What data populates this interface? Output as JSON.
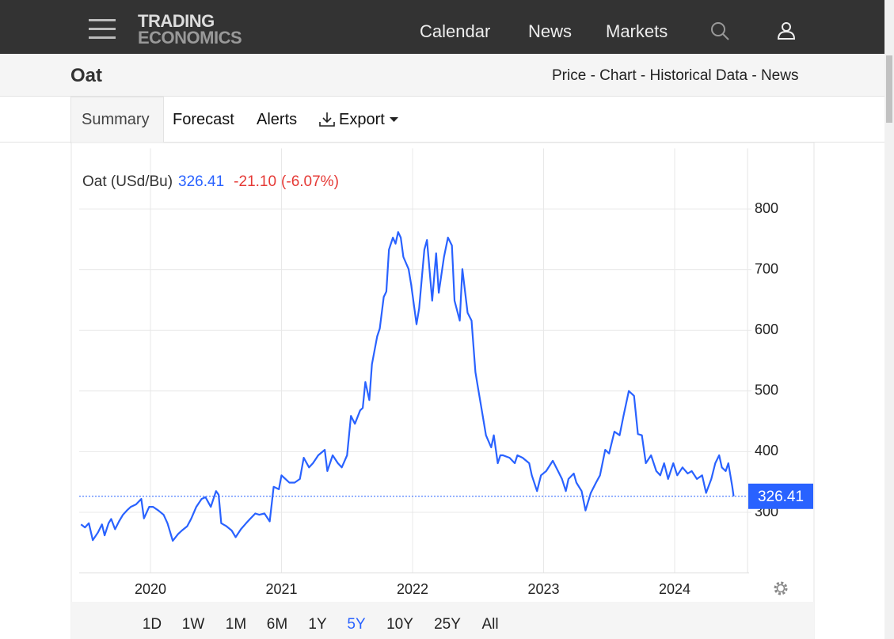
{
  "header": {
    "logo": [
      "TRADING",
      "ECONOMICS"
    ],
    "nav": [
      "Calendar",
      "News",
      "Markets"
    ]
  },
  "subheader": {
    "title": "Oat",
    "links": "Price - Chart - Historical Data - News"
  },
  "tabs": [
    "Summary",
    "Forecast",
    "Alerts",
    "Export"
  ],
  "ranges": {
    "items": [
      "1D",
      "1W",
      "1M",
      "6M",
      "1Y",
      "5Y",
      "10Y",
      "25Y",
      "All"
    ],
    "active": "5Y"
  },
  "chart_data": {
    "type": "line",
    "legend_label": "Oat (USd/Bu)",
    "change": "-21.10",
    "change_pct": "(-6.07%)",
    "x": [
      2019.47,
      2019.5,
      2019.53,
      2019.56,
      2019.6,
      2019.63,
      2019.65,
      2019.68,
      2019.7,
      2019.73,
      2019.76,
      2019.79,
      2019.82,
      2019.85,
      2019.89,
      2019.93,
      2019.95,
      2019.99,
      2020.02,
      2020.06,
      2020.1,
      2020.13,
      2020.17,
      2020.21,
      2020.24,
      2020.28,
      2020.31,
      2020.35,
      2020.39,
      2020.42,
      2020.46,
      2020.5,
      2020.52,
      2020.54,
      2020.58,
      2020.62,
      2020.65,
      2020.69,
      2020.73,
      2020.76,
      2020.8,
      2020.83,
      2020.87,
      2020.91,
      2020.94,
      2020.98,
      2021.0,
      2021.03,
      2021.06,
      2021.1,
      2021.14,
      2021.17,
      2021.21,
      2021.24,
      2021.28,
      2021.33,
      2021.35,
      2021.39,
      2021.43,
      2021.46,
      2021.5,
      2021.53,
      2021.56,
      2021.6,
      2021.62,
      2021.64,
      2021.67,
      2021.69,
      2021.73,
      2021.75,
      2021.78,
      2021.8,
      2021.82,
      2021.85,
      2021.87,
      2021.89,
      2021.91,
      2021.93,
      2021.97,
      2021.99,
      2022.03,
      2022.05,
      2022.09,
      2022.11,
      2022.15,
      2022.18,
      2022.2,
      2022.24,
      2022.27,
      2022.3,
      2022.32,
      2022.36,
      2022.38,
      2022.42,
      2022.45,
      2022.48,
      2022.5,
      2022.54,
      2022.56,
      2022.6,
      2022.62,
      2022.65,
      2022.67,
      2022.69,
      2022.74,
      2022.78,
      2022.8,
      2022.84,
      2022.89,
      2022.91,
      2022.95,
      2022.98,
      2023.02,
      2023.07,
      2023.11,
      2023.14,
      2023.17,
      2023.19,
      2023.23,
      2023.25,
      2023.29,
      2023.32,
      2023.36,
      2023.4,
      2023.43,
      2023.47,
      2023.5,
      2023.54,
      2023.58,
      2023.61,
      2023.65,
      2023.69,
      2023.72,
      2023.75,
      2023.78,
      2023.82,
      2023.86,
      2023.89,
      2023.92,
      2023.95,
      2023.99,
      2024.02,
      2024.06,
      2024.1,
      2024.13,
      2024.17,
      2024.21,
      2024.24,
      2024.28,
      2024.31,
      2024.34,
      2024.36,
      2024.39,
      2024.41,
      2024.44,
      2024.45
    ],
    "series": [
      {
        "name": "Oat",
        "color": "#2962ff",
        "values": [
          280,
          275,
          282,
          254,
          267,
          280,
          262,
          282,
          289,
          272,
          285,
          296,
          303,
          309,
          313,
          322,
          290,
          309,
          309,
          303,
          296,
          282,
          253,
          264,
          270,
          277,
          289,
          309,
          322,
          325,
          309,
          335,
          329,
          282,
          277,
          270,
          259,
          272,
          282,
          289,
          298,
          296,
          298,
          285,
          342,
          338,
          361,
          355,
          349,
          349,
          355,
          390,
          374,
          381,
          394,
          403,
          368,
          394,
          381,
          374,
          394,
          459,
          446,
          468,
          472,
          515,
          485,
          544,
          590,
          603,
          655,
          664,
          733,
          753,
          743,
          762,
          753,
          721,
          701,
          675,
          610,
          636,
          733,
          749,
          649,
          727,
          662,
          721,
          753,
          740,
          649,
          616,
          701,
          629,
          616,
          531,
          505,
          453,
          427,
          407,
          427,
          381,
          394,
          394,
          390,
          381,
          394,
          390,
          381,
          361,
          335,
          361,
          368,
          385,
          368,
          355,
          335,
          355,
          364,
          349,
          335,
          303,
          332,
          349,
          361,
          403,
          397,
          433,
          427,
          459,
          500,
          492,
          429,
          427,
          381,
          394,
          368,
          361,
          381,
          355,
          381,
          361,
          374,
          364,
          368,
          355,
          361,
          332,
          355,
          381,
          394,
          374,
          368,
          381,
          342,
          326.41
        ]
      }
    ],
    "xlim": [
      2019.456,
      2024.55
    ],
    "xticks": [
      2020,
      2021,
      2022,
      2023,
      2024
    ],
    "ylim": [
      200,
      900
    ],
    "yticks": [
      300,
      400,
      500,
      600,
      700,
      800
    ],
    "grid": true
  }
}
